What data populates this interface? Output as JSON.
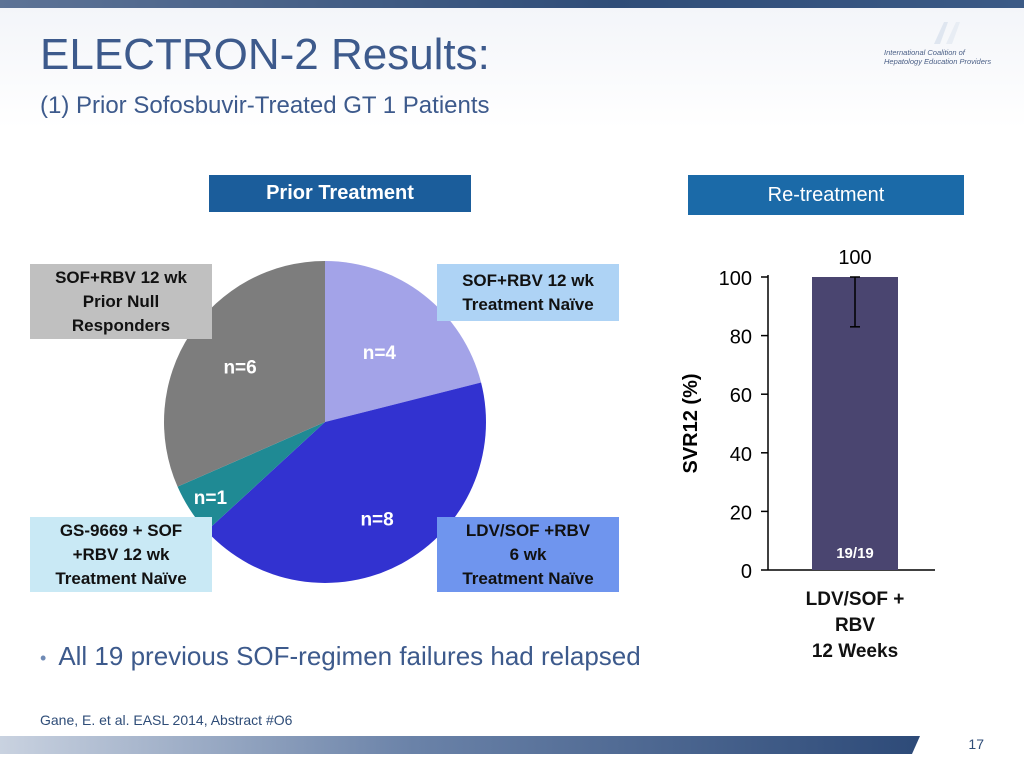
{
  "header": {
    "title": "ELECTRON-2 Results:",
    "subtitle": "(1) Prior Sofosbuvir-Treated GT 1 Patients",
    "logo_line1": "International Coalition of",
    "logo_line2": "Hepatology Education Providers"
  },
  "sections": {
    "prior_treatment": "Prior Treatment",
    "retreatment": "Re-treatment"
  },
  "pie_labels": {
    "null_responders": [
      "SOF+RBV 12 wk",
      "Prior Null",
      "Responders"
    ],
    "treatment_naive": [
      "SOF+RBV 12 wk",
      "Treatment Naïve"
    ],
    "gs9669": [
      "GS-9669 + SOF",
      "+RBV 12 wk",
      "Treatment Naïve"
    ],
    "ldv_sof": [
      "LDV/SOF +RBV",
      "6 wk",
      "Treatment Naïve"
    ]
  },
  "bullet": "All 19 previous SOF-regimen failures had relapsed",
  "citation": "Gane, E. et al. EASL 2014, Abstract #O6",
  "page_number": "17",
  "chart_data": [
    {
      "type": "pie",
      "title": "Prior Treatment",
      "slices": [
        {
          "label": "SOF+RBV 12 wk Treatment Naïve",
          "display": "n=4",
          "value": 4,
          "color": "#a3a3e8"
        },
        {
          "label": "LDV/SOF +RBV 6 wk Treatment Naïve",
          "display": "n=8",
          "value": 8,
          "color": "#3232d0"
        },
        {
          "label": "GS-9669 + SOF +RBV 12 wk Treatment Naïve",
          "display": "n=1",
          "value": 1,
          "color": "#1f8a94"
        },
        {
          "label": "SOF+RBV 12 wk Prior Null Responders",
          "display": "n=6",
          "value": 6,
          "color": "#7d7d7d"
        }
      ]
    },
    {
      "type": "bar",
      "title": "Re-treatment",
      "categories": [
        "LDV/SOF + RBV 12 Weeks"
      ],
      "category_lines": [
        "LDV/SOF +",
        "RBV",
        "12 Weeks"
      ],
      "values": [
        100
      ],
      "value_label": "100",
      "inner_label": "19/19",
      "error_lower": 83,
      "error_upper": 100,
      "ylabel": "SVR12 (%)",
      "ylim": [
        0,
        100
      ],
      "yticks": [
        0,
        20,
        40,
        60,
        80,
        100
      ],
      "bar_color": "#4a4570",
      "grid": false
    }
  ]
}
